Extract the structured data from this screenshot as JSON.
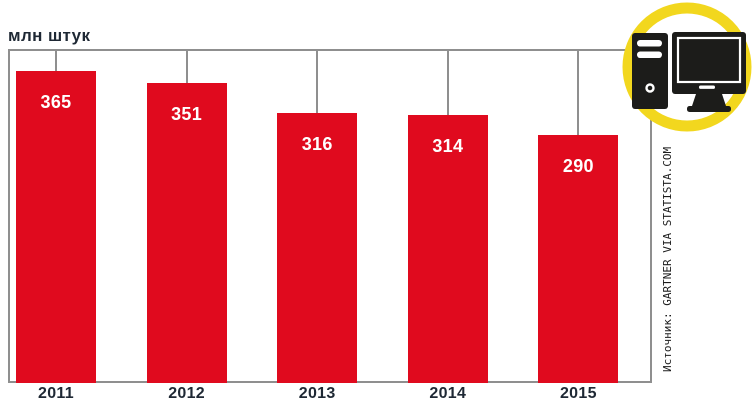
{
  "chart_data": {
    "type": "bar",
    "title": "",
    "unit_label": "млн штук",
    "categories": [
      "2011",
      "2012",
      "2013",
      "2014",
      "2015"
    ],
    "values": [
      365,
      351,
      316,
      314,
      290
    ],
    "xlabel": "",
    "ylabel": "млн штук",
    "ylim": [
      0,
      390
    ],
    "grid": false,
    "legend": "none",
    "bar_color": "#e00a1e",
    "value_label_color": "#ffffff",
    "axis_color": "#8f8f8f",
    "text_color": "#1e2834"
  },
  "source": {
    "text": "Источник: GARTNER VIA STATISTA.COM"
  },
  "icon": {
    "name": "desktop-computer-icon",
    "ring_color": "#f2d71e",
    "glyph_color": "#1c1c1a",
    "background": "#ffffff"
  }
}
